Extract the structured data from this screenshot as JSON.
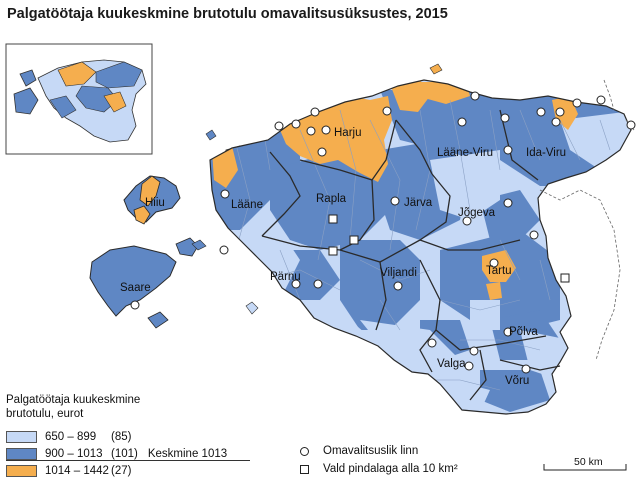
{
  "title": "Palgatöötaja kuukeskmine brutotulu omavalitsusüksustes, 2015",
  "colors": {
    "low": "#c6d9f6",
    "mid": "#5f87c4",
    "high": "#f5ae4e",
    "border": "#2a2a2a",
    "inner_border": "#8aa0c4"
  },
  "counties": [
    {
      "key": "harju",
      "name": "Harju"
    },
    {
      "key": "laane_viru",
      "name": "Lääne-Viru"
    },
    {
      "key": "ida_viru",
      "name": "Ida-Viru"
    },
    {
      "key": "hiiu",
      "name": "Hiiu"
    },
    {
      "key": "laane",
      "name": "Lääne"
    },
    {
      "key": "rapla",
      "name": "Rapla"
    },
    {
      "key": "jarva",
      "name": "Järva"
    },
    {
      "key": "jogeva",
      "name": "Jõgeva"
    },
    {
      "key": "parnu",
      "name": "Pärnu"
    },
    {
      "key": "viljandi",
      "name": "Viljandi"
    },
    {
      "key": "tartu",
      "name": "Tartu"
    },
    {
      "key": "saare",
      "name": "Saare"
    },
    {
      "key": "polva",
      "name": "Põlva"
    },
    {
      "key": "valga",
      "name": "Valga"
    },
    {
      "key": "voru",
      "name": "Võru"
    }
  ],
  "legend": {
    "title_line1": "Palgatöötaja kuukeskmine",
    "title_line2": "brutotulu, eurot",
    "classes": [
      {
        "key": "low",
        "range": "650 –  899",
        "count": "(85)",
        "color": "#c6d9f6"
      },
      {
        "key": "mid",
        "range": "900 – 1013",
        "count": "(101)",
        "color": "#5f87c4"
      },
      {
        "key": "high",
        "range": "1014 – 1442",
        "count": "(27)",
        "color": "#f5ae4e"
      }
    ],
    "mean_label": "Keskmine 1013"
  },
  "symbols": {
    "town": "Omavalitsuslik linn",
    "small_parish": "Vald pindalaga alla 10 km²"
  },
  "scale_bar": {
    "label": "50 km"
  }
}
